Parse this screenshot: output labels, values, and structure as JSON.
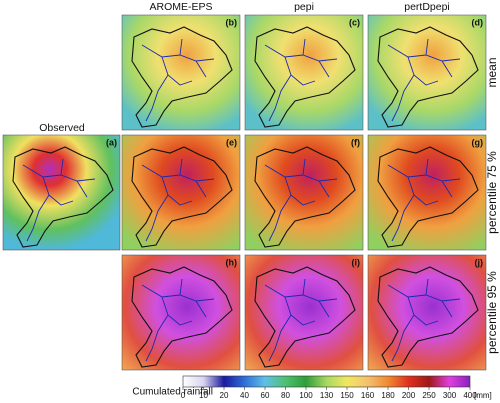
{
  "observed": {
    "title": "Observed",
    "label": "(a)"
  },
  "columns": [
    "AROME-EPS",
    "pepi",
    "pertDpepi"
  ],
  "rows": [
    "mean",
    "percentile 75 %",
    "percentile 95 %"
  ],
  "panels": [
    [
      "(b)",
      "(c)",
      "(d)"
    ],
    [
      "(e)",
      "(f)",
      "(g)"
    ],
    [
      "(h)",
      "(i)",
      "(j)"
    ]
  ],
  "colorbar": {
    "title": "Cumulated rainfall",
    "ticks": [
      0,
      10,
      20,
      40,
      60,
      80,
      100,
      130,
      150,
      160,
      180,
      200,
      250,
      300,
      400
    ],
    "unit": "[mm]",
    "colors": [
      "#ffffff",
      "#d8d4f0",
      "#1a1aa0",
      "#2f6fd8",
      "#5fc0e8",
      "#4fc070",
      "#2e9e3a",
      "#a8d860",
      "#f0e860",
      "#f4c070",
      "#f08a30",
      "#e03020",
      "#a01818",
      "#e040e0",
      "#8a20c0"
    ]
  }
}
